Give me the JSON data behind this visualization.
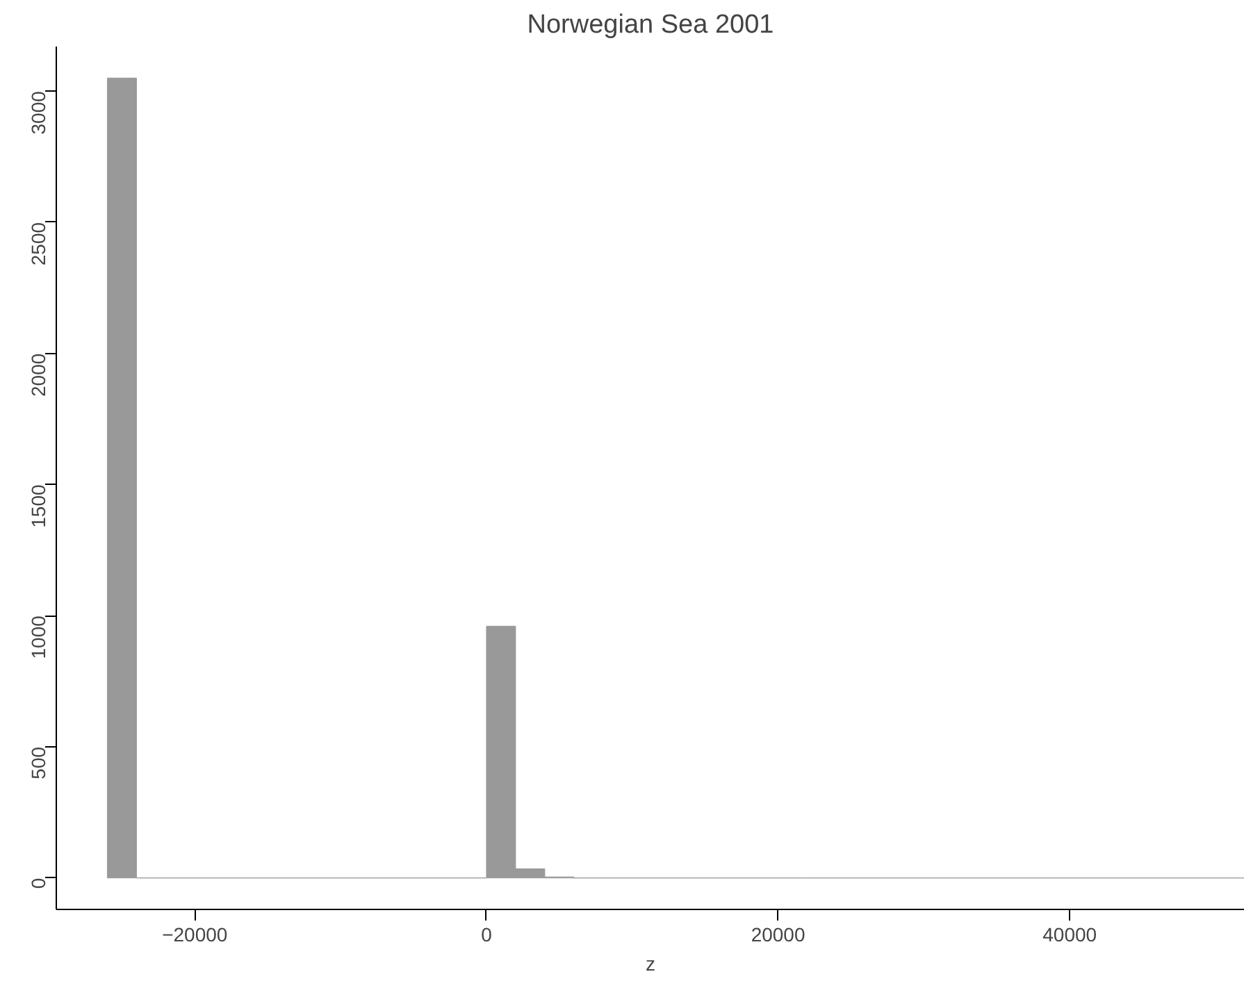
{
  "chart_data": {
    "type": "histogram",
    "title": "Norwegian Sea 2001",
    "xlabel": "z",
    "bins": [
      -26000,
      -24000,
      -22000,
      -20000,
      -18000,
      -16000,
      -14000,
      -12000,
      -10000,
      -8000,
      -6000,
      -4000,
      -2000,
      0,
      2000,
      4000,
      6000,
      8000,
      10000,
      12000,
      14000,
      16000,
      18000,
      20000,
      22000,
      24000,
      26000,
      28000,
      30000,
      32000,
      34000,
      36000,
      38000,
      40000,
      42000,
      44000,
      46000,
      48000,
      50000,
      52000
    ],
    "values": [
      3050,
      0,
      0,
      0,
      0,
      0,
      0,
      0,
      0,
      0,
      0,
      0,
      0,
      960,
      35,
      4,
      0,
      0,
      0,
      0,
      0,
      0,
      0,
      0,
      0,
      0,
      0,
      0,
      0,
      0,
      0,
      0,
      0,
      0,
      0,
      0,
      0,
      0,
      0
    ],
    "color": "#999999",
    "xlim": [
      -29500,
      52000
    ],
    "ylim": [
      -120,
      3170
    ],
    "xticks": [
      -20000,
      0,
      20000,
      40000
    ],
    "yticks": [
      0,
      500,
      1000,
      1500,
      2000,
      2500,
      3000
    ],
    "grid": false
  }
}
